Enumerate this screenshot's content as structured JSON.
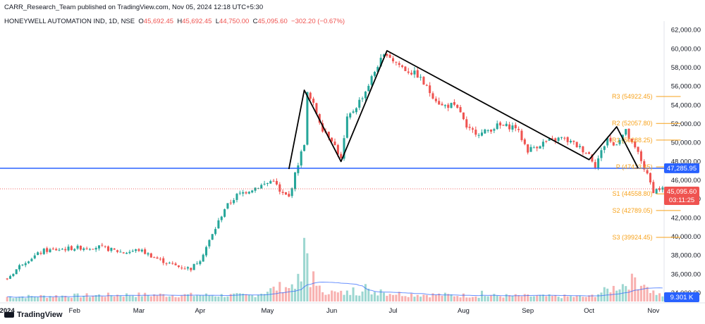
{
  "header": {
    "publisher": "CARR_Research_Team published on TradingView.com, Nov 05, 2024 12:18 UTC+5:30",
    "symbol": "HONEYWELL AUTOMATION IND, 1D, NSE",
    "open_label": "O",
    "open": "45,692.45",
    "high_label": "H",
    "high": "45,692.45",
    "low_label": "L",
    "low": "44,750.00",
    "close_label": "C",
    "close": "45,095.60",
    "change": "−302.20 (−0.67%)"
  },
  "footer": {
    "logo_text": "TradingView"
  },
  "colors": {
    "up": "#26a69a",
    "down": "#ef5350",
    "pivot": "#f7a21b",
    "hline": "#2962ff",
    "pattern": "#000000"
  },
  "chart_data": {
    "type": "candlestick",
    "ylim": [
      34000,
      62500
    ],
    "yticks": [
      "62,000.00",
      "60,000.00",
      "58,000.00",
      "56,000.00",
      "54,000.00",
      "52,000.00",
      "50,000.00",
      "48,000.00",
      "46,000.00",
      "44,000.00",
      "42,000.00",
      "40,000.00",
      "38,000.00",
      "36,000.00",
      "34,000.00"
    ],
    "ytick_values": [
      62000,
      60000,
      58000,
      56000,
      54000,
      52000,
      50000,
      48000,
      46000,
      44000,
      42000,
      40000,
      38000,
      36000,
      34000
    ],
    "xticks": [
      "2024",
      "Feb",
      "Mar",
      "Apr",
      "May",
      "Jun",
      "Jul",
      "Aug",
      "Sep",
      "Oct",
      "Nov"
    ],
    "xtick_index": [
      0,
      22,
      43,
      63,
      85,
      106,
      126,
      149,
      170,
      190,
      211
    ],
    "num_bars": 215,
    "anchors": [
      [
        0,
        35500
      ],
      [
        5,
        37200
      ],
      [
        12,
        38500
      ],
      [
        22,
        38800
      ],
      [
        30,
        38900
      ],
      [
        38,
        38300
      ],
      [
        43,
        38600
      ],
      [
        50,
        37500
      ],
      [
        56,
        36800
      ],
      [
        60,
        36600
      ],
      [
        63,
        37600
      ],
      [
        67,
        40200
      ],
      [
        71,
        43000
      ],
      [
        75,
        44400
      ],
      [
        80,
        45100
      ],
      [
        85,
        45700
      ],
      [
        87,
        46100
      ],
      [
        89,
        44700
      ],
      [
        92,
        44200
      ],
      [
        95,
        47800
      ],
      [
        97,
        50000
      ],
      [
        98,
        55200
      ],
      [
        100,
        54000
      ],
      [
        103,
        51500
      ],
      [
        106,
        50400
      ],
      [
        109,
        48200
      ],
      [
        111,
        52500
      ],
      [
        114,
        53900
      ],
      [
        117,
        55500
      ],
      [
        121,
        58300
      ],
      [
        124,
        59600
      ],
      [
        126,
        58800
      ],
      [
        130,
        57800
      ],
      [
        134,
        57200
      ],
      [
        138,
        55400
      ],
      [
        142,
        53900
      ],
      [
        145,
        54000
      ],
      [
        148,
        53300
      ],
      [
        150,
        51400
      ],
      [
        155,
        51000
      ],
      [
        160,
        51800
      ],
      [
        166,
        51700
      ],
      [
        170,
        49200
      ],
      [
        175,
        50000
      ],
      [
        181,
        50500
      ],
      [
        185,
        49900
      ],
      [
        190,
        48800
      ],
      [
        192,
        47600
      ],
      [
        196,
        50500
      ],
      [
        198,
        49700
      ],
      [
        202,
        51200
      ],
      [
        204,
        49800
      ],
      [
        206,
        48900
      ],
      [
        208,
        47300
      ],
      [
        211,
        44900
      ],
      [
        213,
        45095.6
      ]
    ],
    "vol_anchors": [
      [
        0,
        0.7
      ],
      [
        40,
        1.0
      ],
      [
        80,
        0.9
      ],
      [
        96,
        3.1
      ],
      [
        98,
        2.4
      ],
      [
        100,
        2.0
      ],
      [
        108,
        1.2
      ],
      [
        118,
        1.5
      ],
      [
        130,
        1.1
      ],
      [
        150,
        0.9
      ],
      [
        190,
        0.7
      ],
      [
        205,
        3.2
      ],
      [
        210,
        1.6
      ],
      [
        214,
        0.7
      ]
    ],
    "vol_spikes": [
      [
        97,
        9.5
      ],
      [
        98,
        7.2
      ],
      [
        100,
        4.5
      ],
      [
        92,
        2.0
      ],
      [
        113,
        2.1
      ],
      [
        117,
        2.6
      ],
      [
        122,
        1.8
      ],
      [
        155,
        1.6
      ],
      [
        205,
        3.6
      ],
      [
        208,
        2.5
      ]
    ],
    "pattern_points": [
      [
        92,
        47200
      ],
      [
        97,
        55600
      ],
      [
        109,
        48000
      ],
      [
        124,
        59800
      ],
      [
        190,
        48200
      ],
      [
        199,
        51700
      ],
      [
        206,
        47300
      ]
    ],
    "pivots": [
      {
        "label": "R3 (54922.45)",
        "value": 54922.45
      },
      {
        "label": "R2 (52057.80)",
        "value": 52057.8
      },
      {
        "label": "R1 (50288.25)",
        "value": 50288.25
      },
      {
        "label": "P (47423.45)",
        "value": 47423.45
      },
      {
        "label": "S1 (44558.80)",
        "value": 44558.8
      },
      {
        "label": "S2 (42789.05)",
        "value": 42789.05
      },
      {
        "label": "S3 (39924.45)",
        "value": 39924.45
      }
    ],
    "hline": {
      "value": 47285.95,
      "label": "47,285.95"
    },
    "last_price": {
      "value": 45095.6,
      "label": "45,095.60",
      "timer": "03:11:25"
    },
    "volume_tag": "9.301 K"
  }
}
